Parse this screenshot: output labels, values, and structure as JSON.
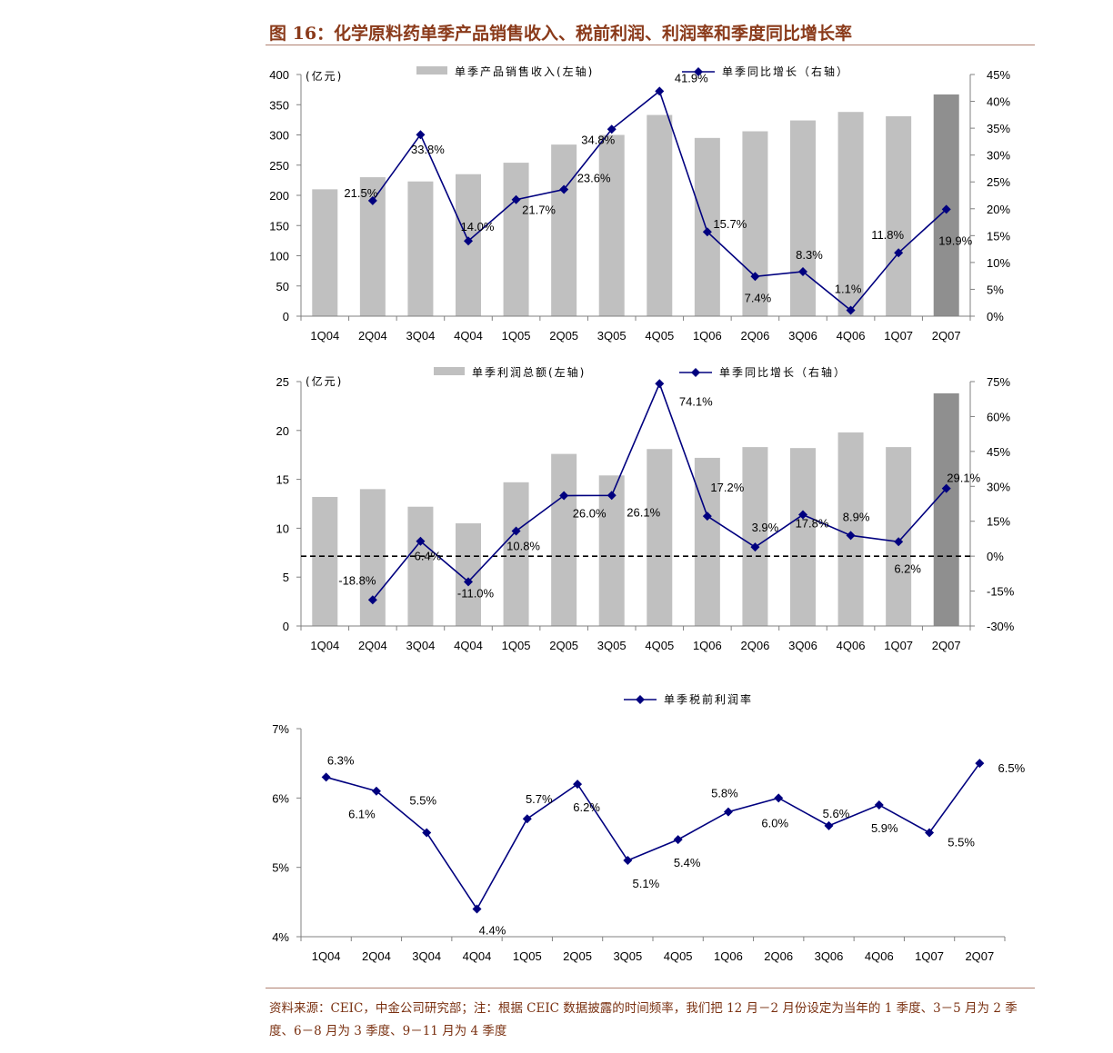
{
  "figure": {
    "title": "图 16：化学原料药单季产品销售收入、税前利润、利润率和季度同比增长率",
    "source_note": "资料来源：CEIC，中金公司研究部；注：根据 CEIC 数据披露的时间频率，我们把 12 月－2 月份设定为当年的 1 季度、3－5 月为 2 季度、6－8 月为 3 季度、9－11 月为 4 季度"
  },
  "colors": {
    "bar": "#c0c0c0",
    "bar_highlight": "#8f8f8f",
    "line": "#00007f",
    "axis": "#808080",
    "title": "#8a3a1a",
    "rule": "#b08070"
  },
  "chart_data": [
    {
      "type": "bar+line",
      "unit_label": "(亿元)",
      "categories": [
        "1Q04",
        "2Q04",
        "3Q04",
        "4Q04",
        "1Q05",
        "2Q05",
        "3Q05",
        "4Q05",
        "1Q06",
        "2Q06",
        "3Q06",
        "4Q06",
        "1Q07",
        "2Q07"
      ],
      "series": [
        {
          "name": "单季产品销售收入(左轴)",
          "kind": "bar",
          "axis": "left",
          "values": [
            210,
            230,
            223,
            235,
            254,
            284,
            300,
            333,
            295,
            306,
            324,
            338,
            331,
            367
          ]
        },
        {
          "name": "单季同比增长（右轴）",
          "kind": "line",
          "axis": "right",
          "values": [
            null,
            21.5,
            33.8,
            14.0,
            21.7,
            23.6,
            34.8,
            41.9,
            15.7,
            7.4,
            8.3,
            1.1,
            11.8,
            19.9
          ],
          "labels": [
            "",
            "21.5%",
            "33.8%",
            "14.0%",
            "21.7%",
            "23.6%",
            "34.8%",
            "41.9%",
            "15.7%",
            "7.4%",
            "8.3%",
            "1.1%",
            "11.8%",
            "19.9%"
          ]
        }
      ],
      "left_axis": {
        "ylim": [
          0,
          400
        ],
        "ticks": [
          "0",
          "50",
          "100",
          "150",
          "200",
          "250",
          "300",
          "350",
          "400"
        ]
      },
      "right_axis": {
        "ylim": [
          0,
          45
        ],
        "ticks": [
          "0%",
          "5%",
          "10%",
          "15%",
          "20%",
          "25%",
          "30%",
          "35%",
          "40%",
          "45%"
        ]
      }
    },
    {
      "type": "bar+line",
      "unit_label": "(亿元)",
      "categories": [
        "1Q04",
        "2Q04",
        "3Q04",
        "4Q04",
        "1Q05",
        "2Q05",
        "3Q05",
        "4Q05",
        "1Q06",
        "2Q06",
        "3Q06",
        "4Q06",
        "1Q07",
        "2Q07"
      ],
      "series": [
        {
          "name": "单季利润总额(左轴)",
          "kind": "bar",
          "axis": "left",
          "values": [
            13.2,
            14.0,
            12.2,
            10.5,
            14.7,
            17.6,
            15.4,
            18.1,
            17.2,
            18.3,
            18.2,
            19.8,
            18.3,
            23.8
          ]
        },
        {
          "name": "单季同比增长（右轴）",
          "kind": "line",
          "axis": "right",
          "values": [
            null,
            -18.8,
            6.4,
            -11.0,
            10.8,
            26.0,
            26.1,
            74.1,
            17.2,
            3.9,
            17.8,
            8.9,
            6.2,
            29.1
          ],
          "labels": [
            "",
            "-18.8%",
            "6.4%",
            "-11.0%",
            "10.8%",
            "26.0%",
            "26.1%",
            "74.1%",
            "17.2%",
            "3.9%",
            "17.8%",
            "8.9%",
            "6.2%",
            "29.1%"
          ]
        }
      ],
      "left_axis": {
        "ylim": [
          0,
          25
        ],
        "ticks": [
          "0",
          "5",
          "10",
          "15",
          "20",
          "25"
        ]
      },
      "right_axis": {
        "ylim": [
          -30,
          75
        ],
        "ticks": [
          "-30%",
          "-15%",
          "0%",
          "15%",
          "30%",
          "45%",
          "60%",
          "75%"
        ]
      },
      "zero_reference_line": "dashed"
    },
    {
      "type": "line",
      "categories": [
        "1Q04",
        "2Q04",
        "3Q04",
        "4Q04",
        "1Q05",
        "2Q05",
        "3Q05",
        "4Q05",
        "1Q06",
        "2Q06",
        "3Q06",
        "4Q06",
        "1Q07",
        "2Q07"
      ],
      "series": [
        {
          "name": "单季税前利润率",
          "kind": "line",
          "axis": "left",
          "values": [
            6.3,
            6.1,
            5.5,
            4.4,
            5.7,
            6.2,
            5.1,
            5.4,
            5.8,
            6.0,
            5.6,
            5.9,
            5.5,
            6.5
          ],
          "labels": [
            "6.3%",
            "6.1%",
            "5.5%",
            "4.4%",
            "5.7%",
            "6.2%",
            "5.1%",
            "5.4%",
            "5.8%",
            "6.0%",
            "5.6%",
            "5.9%",
            "5.5%",
            "6.5%"
          ]
        }
      ],
      "left_axis": {
        "ylim": [
          4,
          7
        ],
        "ticks": [
          "4%",
          "5%",
          "6%",
          "7%"
        ]
      }
    }
  ]
}
